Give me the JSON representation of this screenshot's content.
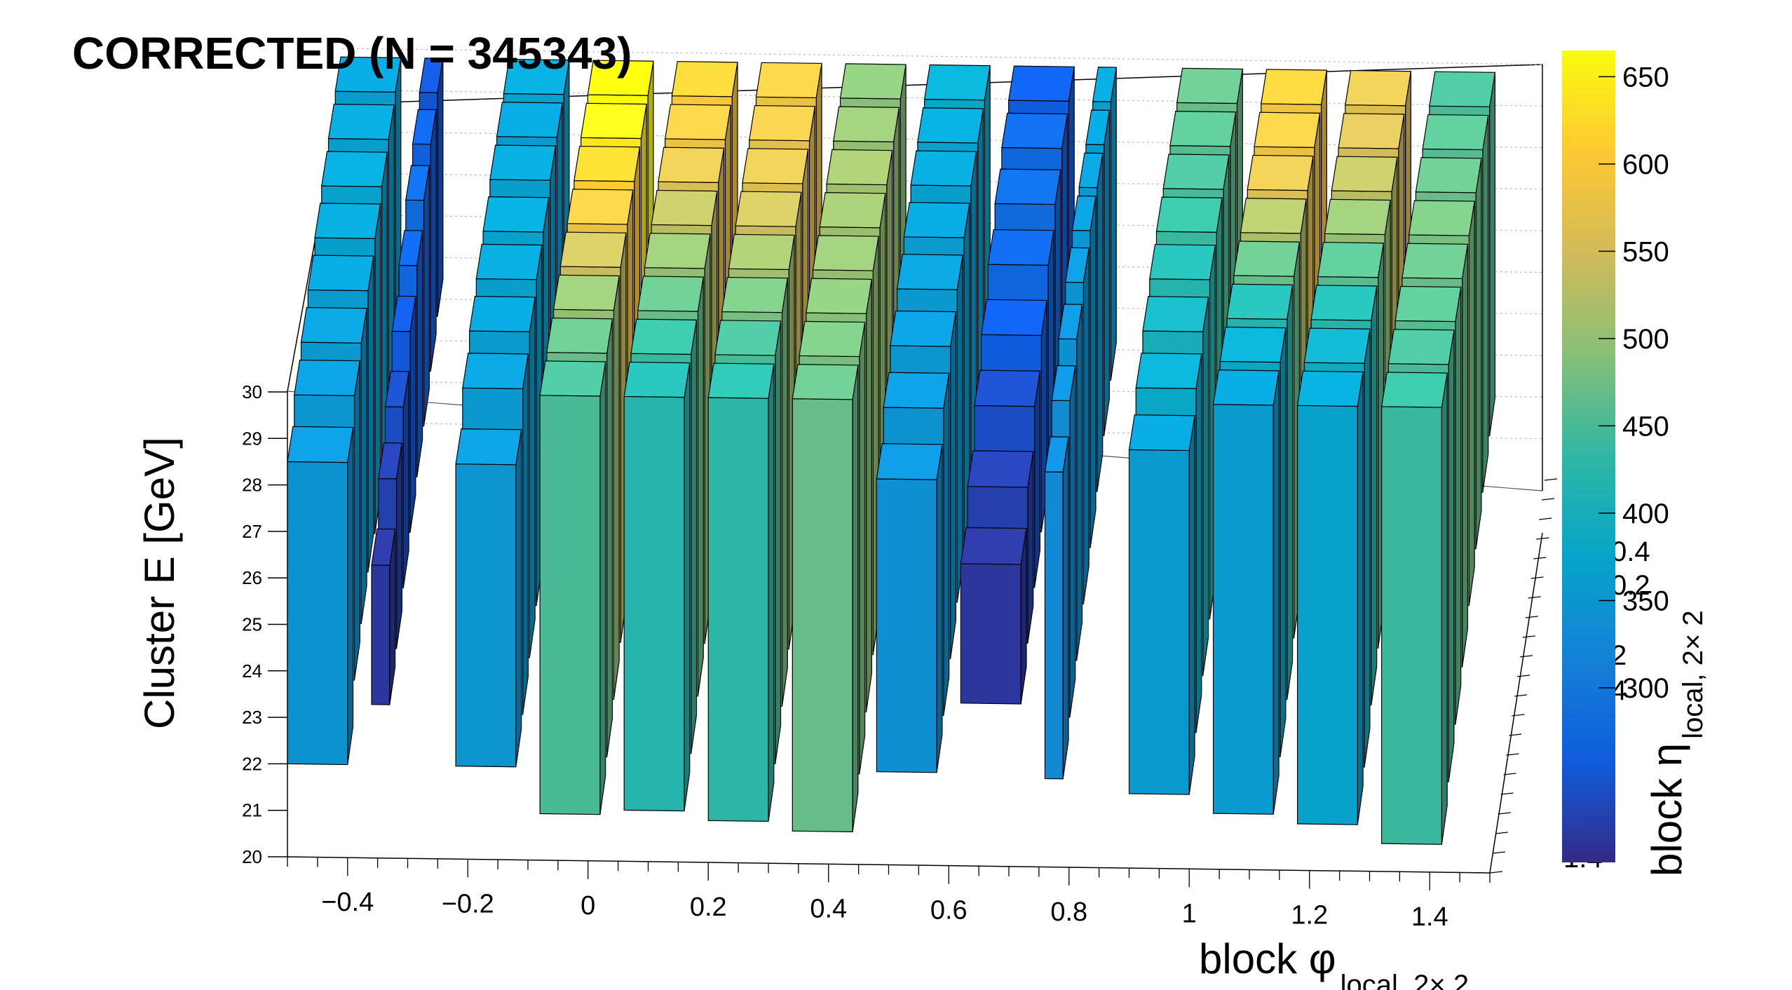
{
  "chart_data": {
    "type": "lego3d",
    "title": "CORRECTED  (N = 345343)",
    "xlabel": "block φ",
    "xlabel_sub": "local, 2× 2",
    "ylabel": "block η",
    "ylabel_sub": "local, 2× 2",
    "zlabel": "Cluster E  [GeV]",
    "x_ticks": [
      "−0.4",
      "−0.2",
      "0",
      "0.2",
      "0.4",
      "0.6",
      "0.8",
      "1",
      "1.2",
      "1.4"
    ],
    "x_tick_values": [
      -0.4,
      -0.2,
      0,
      0.2,
      0.4,
      0.6,
      0.8,
      1.0,
      1.2,
      1.4
    ],
    "z_ticks": [
      "20",
      "21",
      "22",
      "23",
      "24",
      "25",
      "26",
      "27",
      "28",
      "29",
      "30"
    ],
    "xlim": [
      -0.5,
      1.5
    ],
    "ylim": [
      -0.5,
      1.5
    ],
    "zlim": [
      20,
      30
    ],
    "y_visible_ticks": [
      "0.4",
      "0.2",
      "2",
      "4",
      "1.4"
    ],
    "colorbar": {
      "min": 200,
      "max": 665,
      "ticks": [
        "300",
        "350",
        "400",
        "450",
        "500",
        "550",
        "600",
        "650"
      ],
      "tick_values": [
        300,
        350,
        400,
        450,
        500,
        550,
        600,
        650
      ]
    },
    "bar_layout": {
      "columns": 14,
      "rows": 8,
      "gap_columns": [
        2,
        7,
        11
      ],
      "column_x_min": [
        -0.5,
        -0.36,
        -0.22,
        -0.08,
        0.06,
        0.2,
        0.34,
        0.48,
        0.62,
        0.76,
        0.9,
        1.04,
        1.18,
        1.32
      ],
      "column_x_max": [
        -0.4,
        -0.33,
        -0.12,
        0.02,
        0.16,
        0.3,
        0.44,
        0.58,
        0.72,
        0.79,
        1.0,
        1.14,
        1.28,
        1.42
      ],
      "row_y_min": [
        -0.5,
        -0.25,
        0.0,
        0.25,
        0.5,
        0.75,
        1.0,
        1.25
      ],
      "row_y_max": [
        -0.3,
        -0.05,
        0.2,
        0.45,
        0.7,
        0.95,
        1.2,
        1.45
      ]
    },
    "bar_heights_gev": [
      [
        22.0,
        22.8,
        23.0,
        23.1,
        22.9,
        22.8,
        23.5,
        23.2
      ],
      [
        23.3,
        23.5,
        23.8,
        24.0,
        24.2,
        24.3,
        24.5,
        24.7
      ],
      [
        22.0,
        22.1,
        22.3,
        22.4,
        22.6,
        22.8,
        23.0,
        23.2
      ],
      [
        21.0,
        21.2,
        21.4,
        21.6,
        21.8,
        22.0,
        22.1,
        22.3
      ],
      [
        21.1,
        21.3,
        21.5,
        21.6,
        21.8,
        22.0,
        22.2,
        22.4
      ],
      [
        20.9,
        21.1,
        21.3,
        21.5,
        21.7,
        21.9,
        22.0,
        22.2
      ],
      [
        20.7,
        20.9,
        21.2,
        21.4,
        21.6,
        21.8,
        22.0,
        22.2
      ],
      [
        22.0,
        22.2,
        22.4,
        22.6,
        22.7,
        22.9,
        23.1,
        23.3
      ],
      [
        23.5,
        23.8,
        24.0,
        24.2,
        24.4,
        24.6,
        24.8,
        25.0
      ],
      [
        21.9,
        22.2,
        22.4,
        22.6,
        22.8,
        23.0,
        23.2,
        23.4
      ],
      [
        21.6,
        21.9,
        22.1,
        22.3,
        22.5,
        22.7,
        22.9,
        23.1
      ],
      [
        21.2,
        21.4,
        21.6,
        21.9,
        22.1,
        22.3,
        22.5,
        22.7
      ],
      [
        21.0,
        21.2,
        21.5,
        21.7,
        21.9,
        22.1,
        22.3,
        22.5
      ],
      [
        20.6,
        20.9,
        21.1,
        21.3,
        21.6,
        21.8,
        22.0,
        22.2
      ]
    ],
    "bar_tops_gev": [
      [
        28.5,
        29.0,
        29.2,
        29.4,
        29.6,
        29.8,
        29.9,
        30.0
      ],
      [
        26.3,
        27.2,
        27.8,
        28.5,
        29.0,
        29.5,
        29.8,
        30.0
      ],
      [
        28.5,
        29.2,
        29.5,
        29.7,
        29.8,
        30.0,
        30.0,
        30.0
      ],
      [
        30.0,
        30.0,
        30.0,
        30.0,
        30.0,
        30.0,
        30.0,
        30.0
      ],
      [
        30.0,
        30.0,
        30.0,
        30.0,
        30.0,
        30.0,
        30.0,
        30.0
      ],
      [
        30.0,
        30.0,
        30.0,
        30.0,
        30.0,
        30.0,
        30.0,
        30.0
      ],
      [
        30.0,
        30.0,
        30.0,
        30.0,
        30.0,
        30.0,
        30.0,
        30.0
      ],
      [
        28.3,
        28.9,
        29.3,
        29.6,
        29.8,
        30.0,
        30.0,
        30.0
      ],
      [
        26.5,
        27.2,
        28.0,
        28.6,
        29.2,
        29.6,
        29.9,
        30.0
      ],
      [
        28.5,
        29.1,
        29.5,
        29.8,
        30.0,
        30.0,
        30.0,
        30.0
      ],
      [
        29.0,
        29.4,
        29.7,
        29.9,
        30.0,
        30.0,
        30.0,
        30.0
      ],
      [
        30.0,
        30.0,
        30.0,
        30.0,
        30.0,
        30.0,
        30.0,
        30.0
      ],
      [
        30.0,
        30.0,
        30.0,
        30.0,
        30.0,
        30.0,
        30.0,
        30.0
      ],
      [
        30.0,
        30.0,
        30.0,
        30.0,
        30.0,
        30.0,
        30.0,
        30.0
      ]
    ],
    "bar_counts": [
      [
        345,
        350,
        355,
        360,
        365,
        370,
        365,
        360
      ],
      [
        215,
        225,
        240,
        255,
        270,
        280,
        265,
        250
      ],
      [
        350,
        355,
        360,
        365,
        370,
        365,
        360,
        370
      ],
      [
        450,
        470,
        500,
        540,
        580,
        610,
        640,
        665
      ],
      [
        420,
        440,
        470,
        500,
        530,
        560,
        580,
        600
      ],
      [
        430,
        450,
        480,
        510,
        540,
        560,
        570,
        580
      ],
      [
        470,
        480,
        490,
        500,
        505,
        510,
        500,
        490
      ],
      [
        340,
        345,
        350,
        355,
        360,
        365,
        370,
        380
      ],
      [
        215,
        225,
        240,
        260,
        270,
        280,
        275,
        260
      ],
      [
        330,
        335,
        340,
        345,
        350,
        355,
        360,
        365
      ],
      [
        360,
        380,
        400,
        420,
        440,
        450,
        460,
        470
      ],
      [
        360,
        380,
        420,
        470,
        520,
        560,
        580,
        590
      ],
      [
        370,
        390,
        420,
        460,
        500,
        530,
        550,
        560
      ],
      [
        440,
        450,
        460,
        470,
        480,
        470,
        460,
        450
      ]
    ]
  }
}
